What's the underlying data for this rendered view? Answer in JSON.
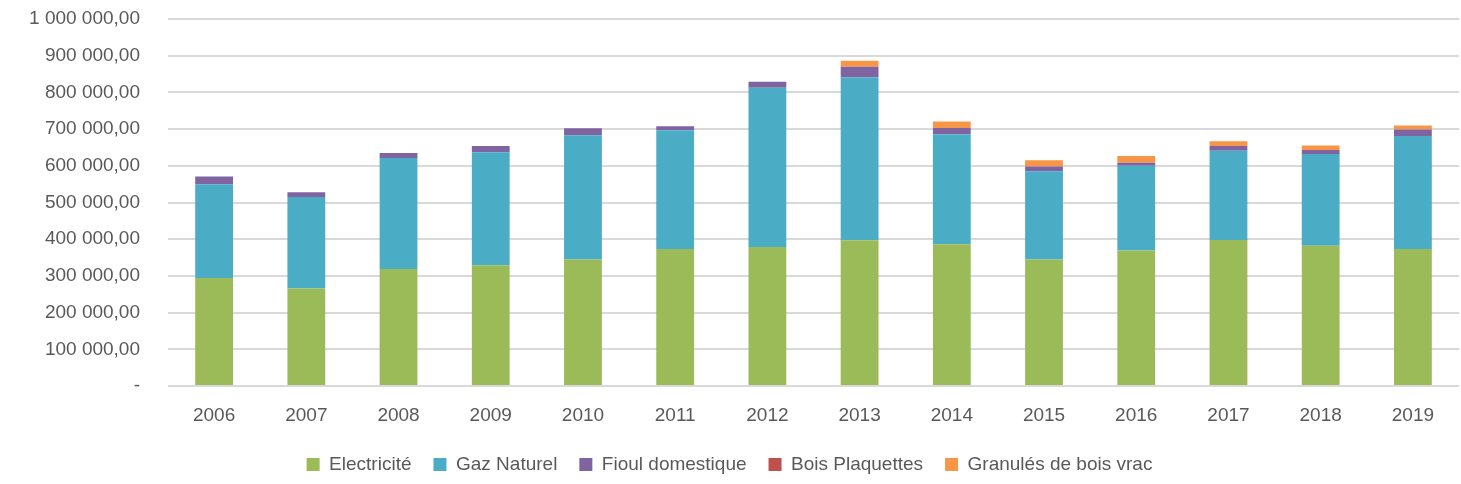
{
  "chart_data": {
    "type": "bar",
    "stacked": true,
    "categories": [
      "2006",
      "2007",
      "2008",
      "2009",
      "2010",
      "2011",
      "2012",
      "2013",
      "2014",
      "2015",
      "2016",
      "2017",
      "2018",
      "2019"
    ],
    "series": [
      {
        "name": "Electricité",
        "color": "#9bbb59",
        "values": [
          294000,
          266000,
          319000,
          329000,
          345000,
          373000,
          379000,
          397000,
          386000,
          345000,
          369000,
          398000,
          382000,
          373000
        ]
      },
      {
        "name": "Gaz Naturel",
        "color": "#4bacc6",
        "values": [
          256000,
          249000,
          302000,
          308000,
          338000,
          324000,
          434000,
          444000,
          300000,
          240000,
          231000,
          243000,
          250000,
          308000
        ]
      },
      {
        "name": "Fioul domestique",
        "color": "#8064a2",
        "values": [
          21000,
          13000,
          14000,
          17000,
          19000,
          11000,
          16000,
          29000,
          17000,
          13000,
          8000,
          13000,
          11000,
          18000
        ]
      },
      {
        "name": "Bois Plaquettes",
        "color": "#c0504d",
        "values": [
          0,
          0,
          0,
          0,
          0,
          0,
          0,
          0,
          0,
          0,
          0,
          0,
          0,
          0
        ]
      },
      {
        "name": "Granulés de bois vrac",
        "color": "#f79646",
        "values": [
          0,
          0,
          0,
          0,
          0,
          0,
          0,
          16000,
          18000,
          17000,
          19000,
          13000,
          12000,
          11000
        ]
      }
    ],
    "ylim": [
      0,
      1000000
    ],
    "yticks": [
      {
        "value": 0,
        "label": "-"
      },
      {
        "value": 100000,
        "label": "100 000,00"
      },
      {
        "value": 200000,
        "label": "200 000,00"
      },
      {
        "value": 300000,
        "label": "300 000,00"
      },
      {
        "value": 400000,
        "label": "400 000,00"
      },
      {
        "value": 500000,
        "label": "500 000,00"
      },
      {
        "value": 600000,
        "label": "600 000,00"
      },
      {
        "value": 700000,
        "label": "700 000,00"
      },
      {
        "value": 800000,
        "label": "800 000,00"
      },
      {
        "value": 900000,
        "label": "900 000,00"
      },
      {
        "value": 1000000,
        "label": "1 000 000,00"
      }
    ],
    "grid": "y",
    "legend": "bottom"
  }
}
